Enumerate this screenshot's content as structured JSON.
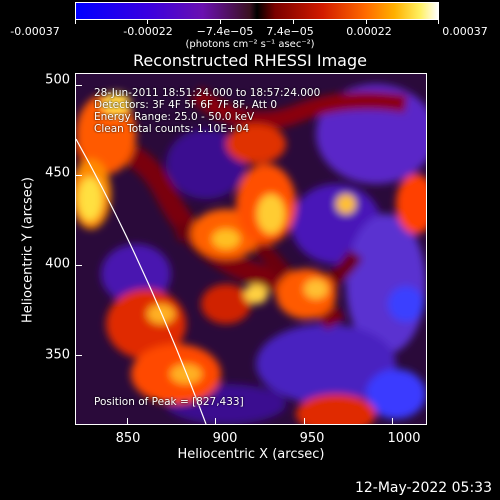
{
  "colorbar": {
    "ticks": [
      "-0.00037",
      "-0.00022",
      "−7.4e−05",
      "7.4e−05",
      "0.00022",
      "0.00037"
    ],
    "unit": "(photons cm⁻² s⁻¹ asec⁻²)"
  },
  "title": "Reconstructed RHESSI Image",
  "info": {
    "time": "28-Jun-2011 18:51:24.000 to 18:57:24.000",
    "detectors": "Detectors: 3F 4F 5F 6F 7F 8F, Att 0",
    "energy": "Energy Range: 25.0 - 50.0 keV",
    "clean": "Clean     Total counts: 1.10E+04"
  },
  "peak": "Position of Peak = [827,433]",
  "x_axis": {
    "title": "Heliocentric X (arcsec)",
    "ticks": [
      "850",
      "900",
      "950",
      "1000"
    ],
    "range": [
      820,
      1020
    ]
  },
  "y_axis": {
    "title": "Heliocentric Y (arcsec)",
    "ticks": [
      "350",
      "400",
      "450",
      "500"
    ],
    "range": [
      305,
      505
    ]
  },
  "timestamp": "12-May-2022 05:33",
  "colors": {
    "hot_high": "#ffff80",
    "hot_mid": "#ff6000",
    "cold": "#4a10c0",
    "limb": "#ffffff"
  }
}
